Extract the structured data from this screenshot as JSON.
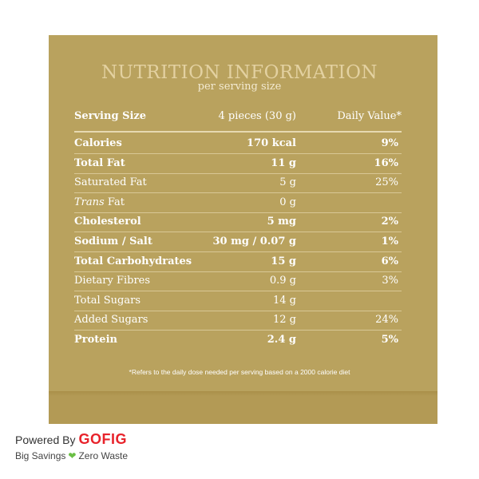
{
  "title": "NUTRITION INFORMATION",
  "subtitle": "per serving size",
  "header": {
    "label": "Serving Size",
    "amount": "4 pieces (30 g)",
    "dv": "Daily Value*"
  },
  "rows": [
    {
      "label": "Calories",
      "amount": "170 kcal",
      "dv": "9%",
      "bold": true
    },
    {
      "label": "Total Fat",
      "amount": "11 g",
      "dv": "16%",
      "bold": true
    },
    {
      "label": "Saturated Fat",
      "amount": "5 g",
      "dv": "25%",
      "bold": false
    },
    {
      "label_italic": "Trans",
      "label_rest": " Fat",
      "amount": "0 g",
      "dv": "",
      "bold": false
    },
    {
      "label": "Cholesterol",
      "amount": "5 mg",
      "dv": "2%",
      "bold": true
    },
    {
      "label": "Sodium / Salt",
      "amount": "30 mg / 0.07 g",
      "dv": "1%",
      "bold": true
    },
    {
      "label": "Total Carbohydrates",
      "amount": "15 g",
      "dv": "6%",
      "bold": true
    },
    {
      "label": "Dietary Fibres",
      "amount": "0.9 g",
      "dv": "3%",
      "bold": false
    },
    {
      "label": "Total Sugars",
      "amount": "14 g",
      "dv": "",
      "bold": false
    },
    {
      "label": "Added Sugars",
      "amount": "12 g",
      "dv": "24%",
      "bold": false
    },
    {
      "label": "Protein",
      "amount": "2.4 g",
      "dv": "5%",
      "bold": true
    }
  ],
  "footnote": "*Refers to the daily dose needed per serving based on a 2000 calorie diet",
  "brand": {
    "powered_by": "Powered By",
    "name": "GOFIG",
    "tagline_left": "Big Savings",
    "tagline_right": "Zero Waste",
    "heart_icon": "heart-icon"
  },
  "colors": {
    "panel": "#B9A25E",
    "title": "#e3d1a1",
    "brand_red": "#e8232b",
    "heart_green": "#6abf45"
  }
}
